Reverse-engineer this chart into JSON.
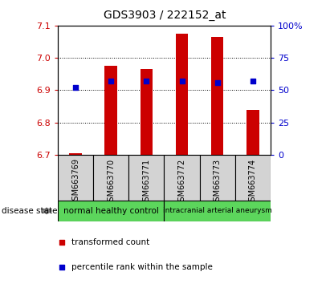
{
  "title": "GDS3903 / 222152_at",
  "samples": [
    "GSM663769",
    "GSM663770",
    "GSM663771",
    "GSM663772",
    "GSM663773",
    "GSM663774"
  ],
  "bar_bottoms": [
    6.7,
    6.7,
    6.7,
    6.7,
    6.7,
    6.7
  ],
  "bar_tops": [
    6.705,
    6.975,
    6.965,
    7.075,
    7.065,
    6.84
  ],
  "bar_color": "#cc0000",
  "dot_pct": [
    52,
    57,
    57,
    57,
    56,
    57
  ],
  "dot_color": "#0000cc",
  "dot_size": 18,
  "ylim": [
    6.7,
    7.1
  ],
  "y_ticks": [
    6.7,
    6.8,
    6.9,
    7.0,
    7.1
  ],
  "y2_ticks": [
    0,
    25,
    50,
    75,
    100
  ],
  "y2_tick_labels": [
    "0",
    "25",
    "50",
    "75",
    "100%"
  ],
  "left_tick_color": "#cc0000",
  "right_tick_color": "#0000cc",
  "groups": [
    {
      "label": "normal healthy control",
      "start": 0,
      "end": 2,
      "color": "#5cd65c"
    },
    {
      "label": "intracranial arterial aneurysm",
      "start": 3,
      "end": 5,
      "color": "#5cd65c"
    }
  ],
  "disease_state_label": "disease state",
  "legend_items": [
    {
      "label": "transformed count",
      "color": "#cc0000"
    },
    {
      "label": "percentile rank within the sample",
      "color": "#0000cc"
    }
  ],
  "bar_width": 0.35,
  "sample_bg": "#d3d3d3",
  "plot_bg": "#ffffff"
}
